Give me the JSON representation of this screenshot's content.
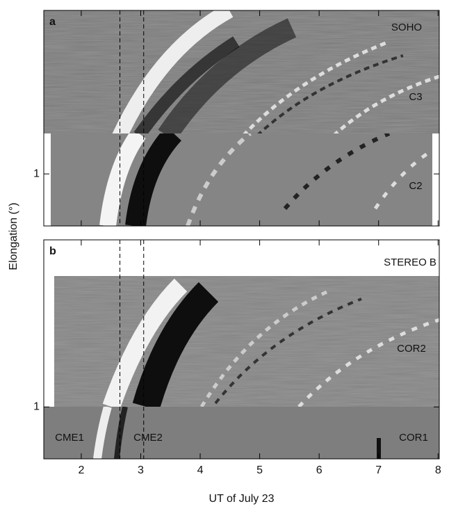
{
  "chart_data": [
    {
      "type": "image",
      "panel": "a",
      "ylabel": "Elongation (°)",
      "annotations": [
        "SOHO",
        "C3",
        "C2"
      ],
      "xlim": [
        1.37,
        8.02
      ],
      "xticks": [
        2,
        3,
        4,
        5,
        6,
        7,
        8
      ],
      "xticklabels": false,
      "ylim": [
        0.65,
        3.87
      ],
      "yticks": [
        1
      ],
      "log_y": true,
      "vlines": [
        2.65,
        3.05
      ]
    },
    {
      "type": "image",
      "panel": "b",
      "xlabel": "UT of July 23",
      "annotations": [
        "STEREO B",
        "COR2",
        "CME1",
        "CME2",
        "COR1"
      ],
      "xlim": [
        1.37,
        8.02
      ],
      "xticks": [
        2,
        3,
        4,
        5,
        6,
        7,
        8
      ],
      "xticklabels": true,
      "ylim": [
        0.65,
        4
      ],
      "yticks": [
        1
      ],
      "log_y": true,
      "vlines": [
        2.65,
        3.05
      ]
    }
  ]
}
